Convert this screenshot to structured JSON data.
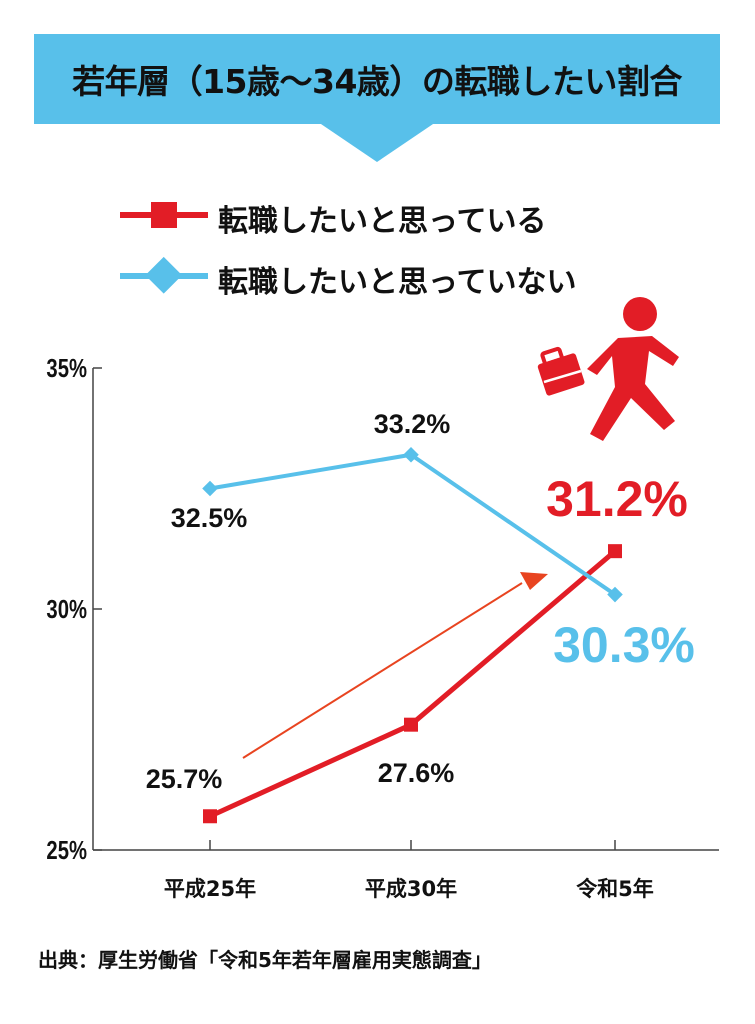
{
  "title": "若年層（15歳～34歳）の転職したい割合",
  "source": "出典：厚生労働省「令和5年若年層雇用実態調査」",
  "colors": {
    "banner": "#58c0ea",
    "red": "#e21d26",
    "blue": "#58c0ea",
    "axis": "#444444"
  },
  "icon": "walking-person-with-briefcase-icon",
  "chart_data": {
    "type": "line",
    "categories": [
      "平成25年",
      "平成30年",
      "令和5年"
    ],
    "ylim": [
      25,
      35
    ],
    "yticks": [
      25,
      30,
      35
    ],
    "ytick_labels": [
      "25%",
      "30%",
      "35%"
    ],
    "grid": false,
    "legend_position": "top",
    "series": [
      {
        "name": "転職したいと思っている",
        "values": [
          25.7,
          27.6,
          31.2
        ],
        "labels": [
          "25.7%",
          "27.6%",
          "31.2%"
        ],
        "color": "#e21d26",
        "marker": "square"
      },
      {
        "name": "転職したいと思っていない",
        "values": [
          32.5,
          33.2,
          30.3
        ],
        "labels": [
          "32.5%",
          "33.2%",
          "30.3%"
        ],
        "color": "#58c0ea",
        "marker": "diamond"
      }
    ]
  }
}
